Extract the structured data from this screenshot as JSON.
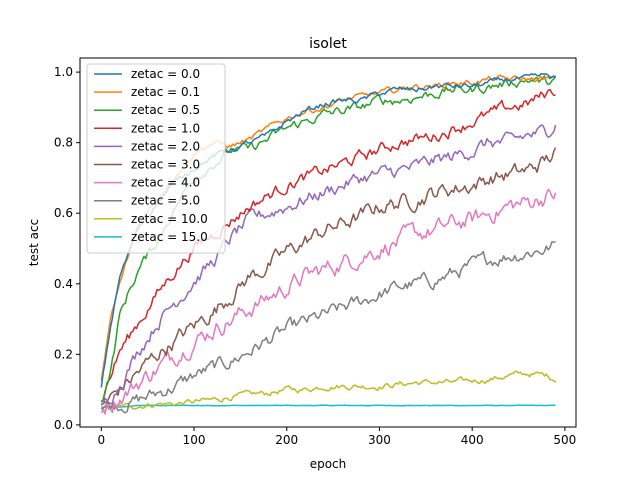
{
  "chart_data": {
    "type": "line",
    "title": "isolet",
    "xlabel": "epoch",
    "ylabel": "test acc",
    "xlim": [
      -23,
      512
    ],
    "ylim": [
      0.0,
      1.0
    ],
    "xticks": [
      0,
      100,
      200,
      300,
      400,
      500
    ],
    "yticks": [
      0.0,
      0.2,
      0.4,
      0.6,
      0.8,
      1.0
    ],
    "grid": false,
    "legend_position": "top-left",
    "series": [
      {
        "name": "zetac = 0.0",
        "color": "#1f77b4",
        "x": [
          0,
          10,
          20,
          40,
          60,
          80,
          100,
          120,
          140,
          160,
          180,
          200,
          220,
          240,
          260,
          280,
          300,
          320,
          340,
          360,
          380,
          400,
          420,
          440,
          460,
          480,
          490
        ],
        "y": [
          0.11,
          0.28,
          0.42,
          0.56,
          0.63,
          0.69,
          0.73,
          0.76,
          0.78,
          0.8,
          0.82,
          0.86,
          0.89,
          0.91,
          0.92,
          0.92,
          0.94,
          0.95,
          0.95,
          0.96,
          0.96,
          0.96,
          0.97,
          0.98,
          0.98,
          0.99,
          0.98
        ]
      },
      {
        "name": "zetac = 0.1",
        "color": "#ff7f0e",
        "x": [
          0,
          10,
          20,
          40,
          60,
          80,
          100,
          120,
          140,
          160,
          180,
          200,
          220,
          240,
          260,
          280,
          300,
          320,
          340,
          360,
          380,
          400,
          420,
          440,
          460,
          480,
          490
        ],
        "y": [
          0.12,
          0.3,
          0.4,
          0.57,
          0.64,
          0.71,
          0.77,
          0.8,
          0.79,
          0.81,
          0.84,
          0.87,
          0.89,
          0.9,
          0.92,
          0.93,
          0.94,
          0.95,
          0.96,
          0.96,
          0.97,
          0.97,
          0.98,
          0.98,
          0.98,
          0.98,
          0.98
        ]
      },
      {
        "name": "zetac = 0.5",
        "color": "#2ca02c",
        "x": [
          0,
          10,
          20,
          30,
          40,
          60,
          80,
          100,
          120,
          140,
          160,
          180,
          200,
          220,
          240,
          260,
          280,
          300,
          320,
          340,
          360,
          380,
          400,
          420,
          440,
          460,
          480,
          490
        ],
        "y": [
          0.06,
          0.15,
          0.31,
          0.38,
          0.44,
          0.52,
          0.62,
          0.7,
          0.74,
          0.78,
          0.78,
          0.81,
          0.84,
          0.86,
          0.88,
          0.89,
          0.9,
          0.92,
          0.92,
          0.93,
          0.94,
          0.95,
          0.95,
          0.96,
          0.97,
          0.98,
          0.97,
          0.98
        ]
      },
      {
        "name": "zetac = 1.0",
        "color": "#d62728",
        "x": [
          0,
          20,
          40,
          60,
          80,
          100,
          120,
          140,
          160,
          180,
          200,
          220,
          240,
          260,
          280,
          300,
          320,
          340,
          360,
          380,
          400,
          420,
          440,
          460,
          480,
          490
        ],
        "y": [
          0.07,
          0.21,
          0.29,
          0.37,
          0.44,
          0.5,
          0.54,
          0.58,
          0.62,
          0.65,
          0.68,
          0.7,
          0.72,
          0.74,
          0.76,
          0.78,
          0.8,
          0.81,
          0.82,
          0.84,
          0.86,
          0.88,
          0.9,
          0.91,
          0.94,
          0.95
        ]
      },
      {
        "name": "zetac = 2.0",
        "color": "#9467bd",
        "x": [
          0,
          20,
          40,
          60,
          80,
          100,
          120,
          140,
          160,
          180,
          200,
          220,
          240,
          260,
          280,
          300,
          320,
          340,
          360,
          380,
          400,
          420,
          440,
          460,
          480,
          490
        ],
        "y": [
          0.05,
          0.12,
          0.21,
          0.29,
          0.35,
          0.41,
          0.46,
          0.53,
          0.58,
          0.6,
          0.62,
          0.64,
          0.66,
          0.68,
          0.7,
          0.71,
          0.72,
          0.73,
          0.75,
          0.76,
          0.78,
          0.8,
          0.8,
          0.82,
          0.83,
          0.86
        ]
      },
      {
        "name": "zetac = 3.0",
        "color": "#8c564b",
        "x": [
          0,
          20,
          40,
          60,
          80,
          100,
          120,
          140,
          160,
          180,
          200,
          220,
          240,
          260,
          280,
          300,
          320,
          340,
          360,
          380,
          400,
          420,
          440,
          460,
          480,
          490
        ],
        "y": [
          0.05,
          0.1,
          0.15,
          0.2,
          0.24,
          0.28,
          0.32,
          0.37,
          0.42,
          0.45,
          0.49,
          0.52,
          0.55,
          0.57,
          0.59,
          0.62,
          0.63,
          0.64,
          0.66,
          0.67,
          0.68,
          0.7,
          0.71,
          0.72,
          0.75,
          0.77
        ]
      },
      {
        "name": "zetac = 4.0",
        "color": "#e377c2",
        "x": [
          0,
          20,
          40,
          60,
          80,
          100,
          120,
          140,
          160,
          180,
          200,
          220,
          240,
          260,
          280,
          300,
          320,
          340,
          360,
          380,
          400,
          420,
          440,
          460,
          480,
          490
        ],
        "y": [
          0.05,
          0.08,
          0.12,
          0.16,
          0.2,
          0.24,
          0.27,
          0.3,
          0.33,
          0.36,
          0.39,
          0.42,
          0.44,
          0.46,
          0.48,
          0.5,
          0.52,
          0.54,
          0.55,
          0.57,
          0.58,
          0.6,
          0.62,
          0.63,
          0.65,
          0.65
        ]
      },
      {
        "name": "zetac = 5.0",
        "color": "#7f7f7f",
        "x": [
          0,
          20,
          40,
          60,
          80,
          100,
          120,
          140,
          160,
          180,
          200,
          220,
          240,
          260,
          280,
          300,
          320,
          340,
          360,
          380,
          400,
          420,
          440,
          460,
          480,
          490
        ],
        "y": [
          0.05,
          0.06,
          0.07,
          0.09,
          0.11,
          0.14,
          0.16,
          0.18,
          0.21,
          0.24,
          0.27,
          0.29,
          0.31,
          0.33,
          0.35,
          0.37,
          0.39,
          0.4,
          0.41,
          0.43,
          0.45,
          0.47,
          0.48,
          0.49,
          0.5,
          0.51
        ]
      },
      {
        "name": "zetac = 10.0",
        "color": "#bcbd22",
        "x": [
          0,
          20,
          40,
          60,
          80,
          100,
          120,
          140,
          160,
          180,
          200,
          220,
          240,
          260,
          280,
          300,
          320,
          340,
          360,
          380,
          400,
          420,
          440,
          460,
          480,
          490
        ],
        "y": [
          0.05,
          0.05,
          0.055,
          0.06,
          0.06,
          0.065,
          0.07,
          0.08,
          0.085,
          0.09,
          0.1,
          0.1,
          0.11,
          0.11,
          0.11,
          0.11,
          0.115,
          0.12,
          0.12,
          0.12,
          0.125,
          0.13,
          0.14,
          0.145,
          0.14,
          0.13
        ]
      },
      {
        "name": "zetac = 15.0",
        "color": "#17becf",
        "x": [
          0,
          20,
          40,
          60,
          100,
          200,
          300,
          400,
          490
        ],
        "y": [
          0.05,
          0.05,
          0.055,
          0.055,
          0.055,
          0.055,
          0.055,
          0.055,
          0.055
        ]
      }
    ]
  }
}
